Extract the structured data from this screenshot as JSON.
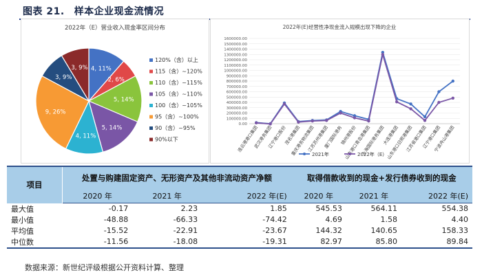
{
  "figure": {
    "number": "图表 21.",
    "title": "样本企业现金流情况"
  },
  "source": "数据来源：新世纪评级根据公开资料计算、整理",
  "chart_data": [
    {
      "type": "pie",
      "title": "2022年（E）营业收入现金率区间分布",
      "slices": [
        {
          "label": "120%（含）以上",
          "count": 4,
          "percent": 11,
          "value_label": "4, 11%",
          "color": "#4472c4"
        },
        {
          "label": "115（含）~120%",
          "count": 2,
          "percent": 6,
          "value_label": "2, 6%",
          "color": "#e04848"
        },
        {
          "label": "110（含）~115%",
          "count": 5,
          "percent": 14,
          "value_label": "5, 14%",
          "color": "#8ac43c"
        },
        {
          "label": "105（含）~110%",
          "count": 5,
          "percent": 14,
          "value_label": "5, 14%",
          "color": "#7a56a6"
        },
        {
          "label": "100（含）~105%",
          "count": 4,
          "percent": 11,
          "value_label": "4, 11%",
          "color": "#2cb2d1"
        },
        {
          "label": "95（含）~100%",
          "count": 9,
          "percent": 26,
          "value_label": "9, 26%",
          "color": "#f79a34"
        },
        {
          "label": "90（含）~95%",
          "count": 3,
          "percent": 9,
          "value_label": "3, 9%",
          "color": "#244d7f"
        },
        {
          "label": "90%以下",
          "count": 3,
          "percent": 9,
          "value_label": "3, 9%",
          "color": "#8b2a2a"
        }
      ]
    },
    {
      "type": "line",
      "title": "2022年(E)经营性净现金流入规模出现下降的企业",
      "ylim": [
        0,
        1600000
      ],
      "y_ticks": [
        "0.00",
        "100000.00",
        "200000.00",
        "300000.00",
        "400000.00",
        "500000.00",
        "600000.00",
        "700000.00",
        "800000.00",
        "900000.00",
        "1000000.00",
        "1100000.00",
        "1200000.00",
        "1300000.00",
        "1400000.00",
        "1500000.00",
        "1600000.00"
      ],
      "categories": [
        "连云港港口集团",
        "武汉港务集团",
        "辽宁港口股份",
        "茂名港集团",
        "重庆港务物流集团",
        "江苏苏州港集团",
        "厦门国际港务",
        "锦州港股份",
        "山东港口青岛港集团",
        "上海国际港务集团",
        "大连港集团",
        "山东港口日照港集团",
        "江苏省港口集团",
        "辽宁港口集团",
        "宁波舟山港集团"
      ],
      "series": [
        {
          "name": "2021年",
          "color": "#4472c4",
          "values": [
            20000,
            0,
            390000,
            40000,
            60000,
            70000,
            230000,
            150000,
            80000,
            1340000,
            470000,
            370000,
            130000,
            600000,
            800000
          ]
        },
        {
          "name": "2022年（E）",
          "color": "#7a56a6",
          "values": [
            15000,
            -5000,
            370000,
            30000,
            50000,
            60000,
            200000,
            110000,
            50000,
            1300000,
            410000,
            280000,
            60000,
            400000,
            480000
          ]
        }
      ],
      "legend_position": "bottom"
    }
  ],
  "table": {
    "item_header": "项目",
    "group1": "处置与购建固定资产、无形资产及其他非流动资产净额",
    "group2": "取得借款收到的现金+发行债券收到的现金",
    "years": [
      "2020 年",
      "2021 年",
      "2022 年(E)",
      "2020 年",
      "2021 年",
      "2022 年(E)"
    ],
    "rows": [
      {
        "label": "最大值",
        "values": [
          "-0.17",
          "2.23",
          "1.85",
          "545.53",
          "564.11",
          "554.38"
        ]
      },
      {
        "label": "最小值",
        "values": [
          "-48.88",
          "-66.33",
          "-74.42",
          "4.69",
          "1.58",
          "4.40"
        ]
      },
      {
        "label": "平均值",
        "values": [
          "-15.52",
          "-22.91",
          "-23.67",
          "144.32",
          "140.65",
          "158.33"
        ]
      },
      {
        "label": "中位数",
        "values": [
          "-11.56",
          "-18.08",
          "-19.31",
          "82.97",
          "85.80",
          "89.84"
        ]
      }
    ]
  }
}
